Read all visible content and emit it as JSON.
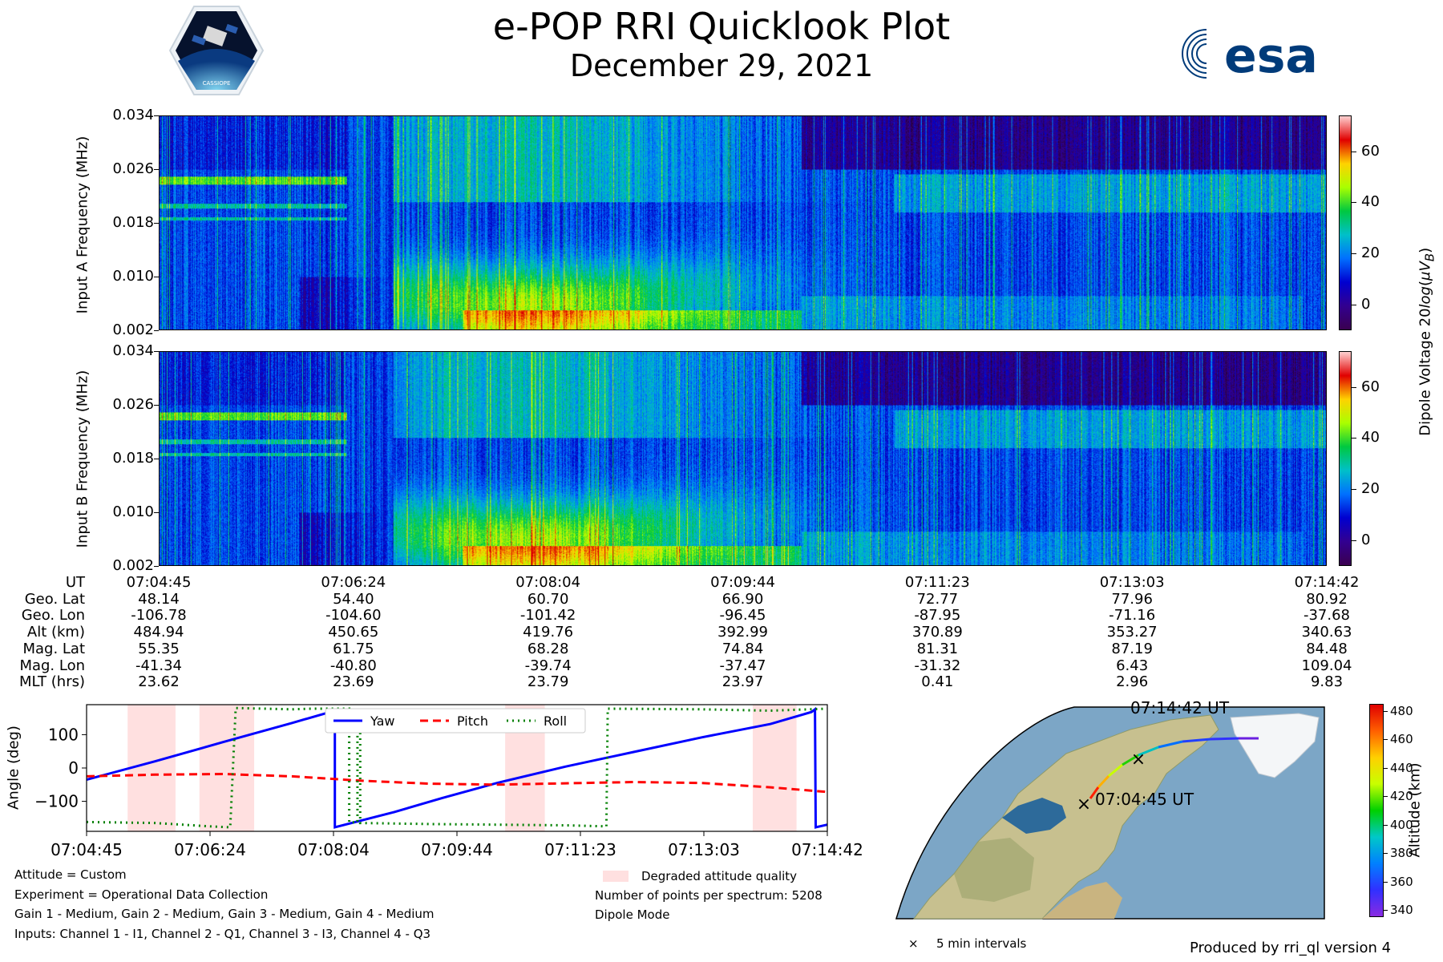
{
  "header": {
    "title": "e-POP RRI Quicklook Plot",
    "date": "December 29, 2021",
    "logo_left_text": "CASSIOPE",
    "logo_right_text": "esa"
  },
  "spectrograms": {
    "colorbar_label": "Dipole Voltage 20log(μV_B)",
    "colorbar_ticks": [
      0,
      20,
      40,
      60
    ],
    "colorbar_range": [
      -10,
      74
    ],
    "freq_ticks": [
      "0.002",
      "0.010",
      "0.018",
      "0.026",
      "0.034"
    ],
    "panel_a_ylabel": "Input A Frequency (MHz)",
    "panel_b_ylabel": "Input B Frequency (MHz)"
  },
  "ephemeris": {
    "row_labels": [
      "UT",
      "Geo. Lat",
      "Geo. Lon",
      "Alt (km)",
      "Mag. Lat",
      "Mag. Lon",
      "MLT (hrs)"
    ],
    "columns": [
      [
        "07:04:45",
        "48.14",
        "-106.78",
        "484.94",
        "55.35",
        "-41.34",
        "23.62"
      ],
      [
        "07:06:24",
        "54.40",
        "-104.60",
        "450.65",
        "61.75",
        "-40.80",
        "23.69"
      ],
      [
        "07:08:04",
        "60.70",
        "-101.42",
        "419.76",
        "68.28",
        "-39.74",
        "23.79"
      ],
      [
        "07:09:44",
        "66.90",
        "-96.45",
        "392.99",
        "74.84",
        "-37.47",
        "23.97"
      ],
      [
        "07:11:23",
        "72.77",
        "-87.95",
        "370.89",
        "81.31",
        "-31.32",
        "0.41"
      ],
      [
        "07:13:03",
        "77.96",
        "-71.16",
        "353.27",
        "87.19",
        "6.43",
        "2.96"
      ],
      [
        "07:14:42",
        "80.92",
        "-37.68",
        "340.63",
        "84.48",
        "109.04",
        "9.83"
      ]
    ]
  },
  "chart_data": {
    "type": "line",
    "ylabel": "Angle (deg)",
    "x_ticks": [
      "07:04:45",
      "07:06:24",
      "07:08:04",
      "07:09:44",
      "07:11:23",
      "07:13:03",
      "07:14:42"
    ],
    "x_range_seconds": [
      0,
      597
    ],
    "ylim": [
      -190,
      190
    ],
    "y_ticks": [
      100,
      0,
      -100
    ],
    "legend": [
      "Yaw",
      "Pitch",
      "Roll"
    ],
    "legend_placement": "top-center",
    "series": [
      {
        "name": "Yaw",
        "color": "#0000ff",
        "style": "solid",
        "points": [
          [
            0,
            -35
          ],
          [
            100,
            20
          ],
          [
            200,
            78
          ],
          [
            300,
            135
          ],
          [
            363,
            172
          ],
          [
            363,
            -178
          ],
          [
            450,
            -132
          ],
          [
            520,
            -90
          ],
          [
            600,
            -45
          ],
          [
            700,
            4
          ],
          [
            800,
            48
          ],
          [
            900,
            92
          ],
          [
            1000,
            132
          ],
          [
            1060,
            168
          ],
          [
            1065,
            176
          ],
          [
            1066,
            -178
          ],
          [
            1083,
            -170
          ]
        ]
      },
      {
        "name": "Pitch",
        "color": "#ff0000",
        "style": "dashed",
        "points": [
          [
            0,
            -25
          ],
          [
            100,
            -20
          ],
          [
            200,
            -18
          ],
          [
            300,
            -25
          ],
          [
            400,
            -38
          ],
          [
            500,
            -47
          ],
          [
            600,
            -50
          ],
          [
            700,
            -46
          ],
          [
            800,
            -42
          ],
          [
            900,
            -45
          ],
          [
            1000,
            -58
          ],
          [
            1083,
            -72
          ]
        ]
      },
      {
        "name": "Roll",
        "color": "#008000",
        "style": "dotted",
        "points": [
          [
            0,
            -162
          ],
          [
            100,
            -165
          ],
          [
            180,
            -175
          ],
          [
            210,
            -178
          ],
          [
            218,
            180
          ],
          [
            300,
            176
          ],
          [
            330,
            178
          ],
          [
            384,
            178
          ],
          [
            384,
            -163
          ],
          [
            396,
            -163
          ],
          [
            396,
            120
          ],
          [
            400,
            120
          ],
          [
            400,
            -165
          ],
          [
            500,
            -168
          ],
          [
            600,
            -170
          ],
          [
            700,
            -172
          ],
          [
            760,
            -175
          ],
          [
            762,
            178
          ],
          [
            900,
            176
          ],
          [
            1000,
            172
          ],
          [
            1083,
            178
          ]
        ]
      }
    ],
    "degraded_intervals": [
      [
        60,
        130
      ],
      [
        165,
        245
      ],
      [
        612,
        670
      ],
      [
        974,
        1038
      ]
    ],
    "degraded_label": "Degraded attitude quality"
  },
  "experiment_info": {
    "lines": [
      "Attitude = Custom",
      "Experiment = Operational Data Collection",
      "Gain 1 - Medium, Gain 2 - Medium, Gain 3 - Medium, Gain 4 - Medium",
      "Inputs: Channel 1 - I1, Channel 2 - Q1, Channel 3 - I3, Channel 4 - Q3"
    ],
    "points_per_spectrum": "Number of points per spectrum: 5208",
    "mode": "Dipole Mode"
  },
  "map": {
    "start_label": "07:04:45 UT",
    "end_label": "07:14:42 UT",
    "interval_legend": "5 min intervals",
    "colorbar_label": "Altitude (km)",
    "colorbar_ticks": [
      340,
      360,
      380,
      400,
      420,
      440,
      460,
      480
    ],
    "colorbar_range": [
      335,
      485
    ]
  },
  "footer": {
    "produced_by": "Produced by rri_ql version 4"
  }
}
